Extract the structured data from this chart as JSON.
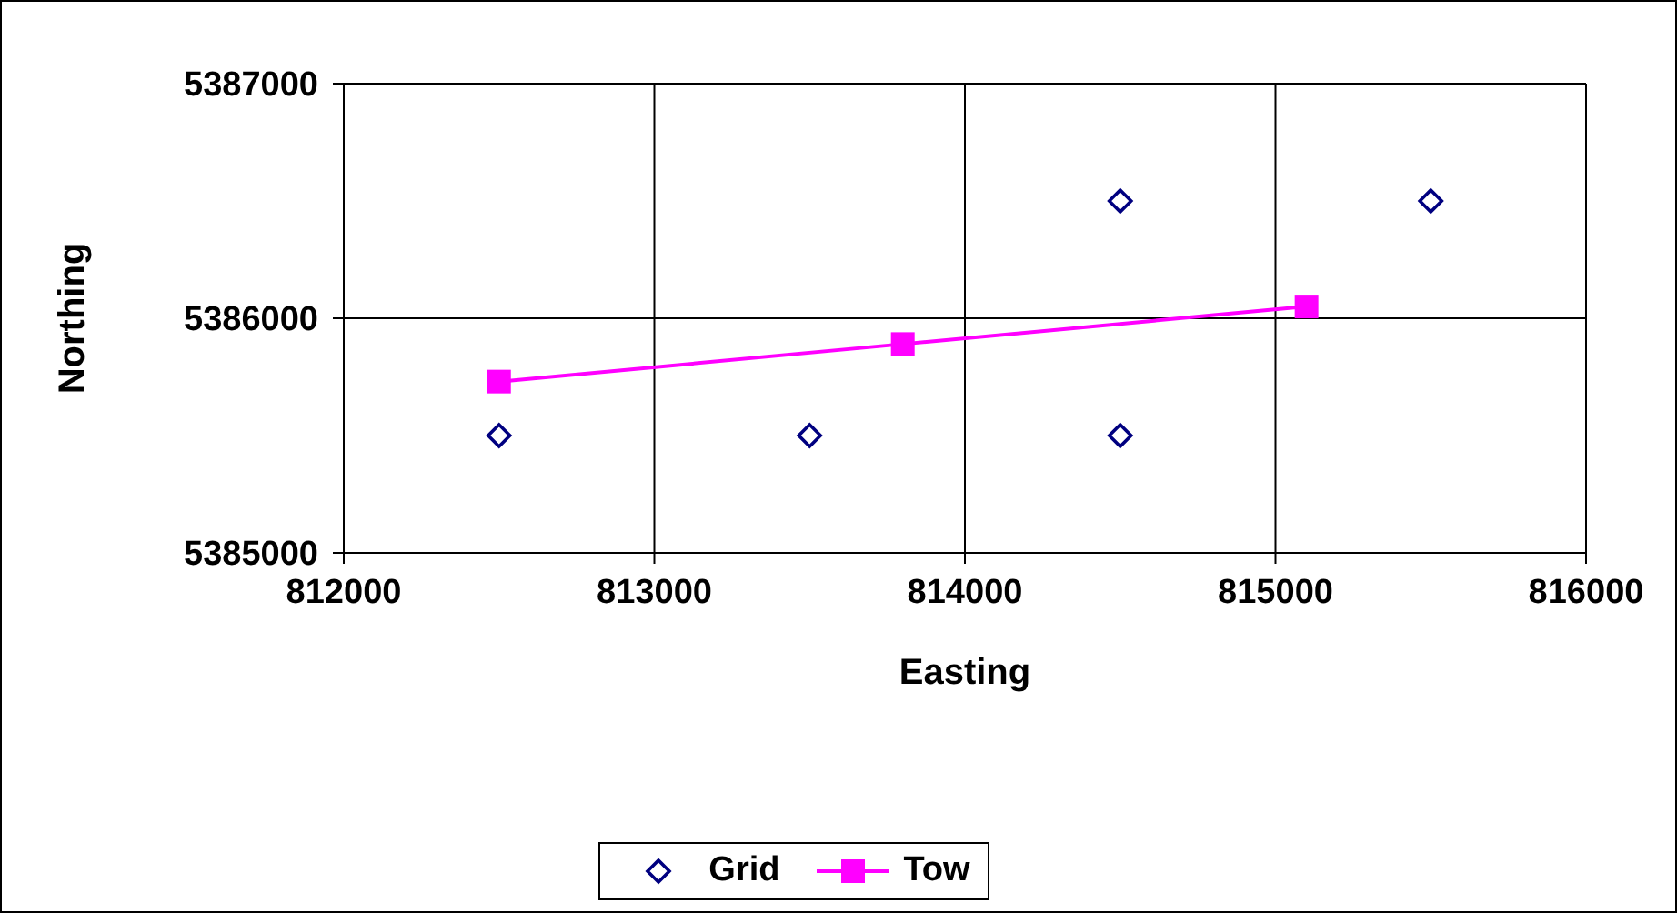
{
  "chart_data": {
    "type": "scatter",
    "xlabel": "Easting",
    "ylabel": "Northing",
    "xlim": [
      812000,
      816000
    ],
    "xticks": [
      812000,
      813000,
      814000,
      815000,
      816000
    ],
    "ylim": [
      5385000,
      5387000
    ],
    "yticks": [
      5385000,
      5386000,
      5387000
    ],
    "grid": true,
    "legend": "bottom",
    "series": [
      {
        "name": "Grid",
        "marker": "diamond",
        "color": "#000080",
        "x": [
          812500,
          813500,
          814500,
          814500,
          815500
        ],
        "values": [
          5385500,
          5385500,
          5385500,
          5386500,
          5386500
        ]
      },
      {
        "name": "Tow",
        "type": "line",
        "marker": "square",
        "color": "#ff00ff",
        "x": [
          812500,
          813800,
          815100
        ],
        "values": [
          5385730,
          5385890,
          5386050
        ]
      }
    ]
  }
}
